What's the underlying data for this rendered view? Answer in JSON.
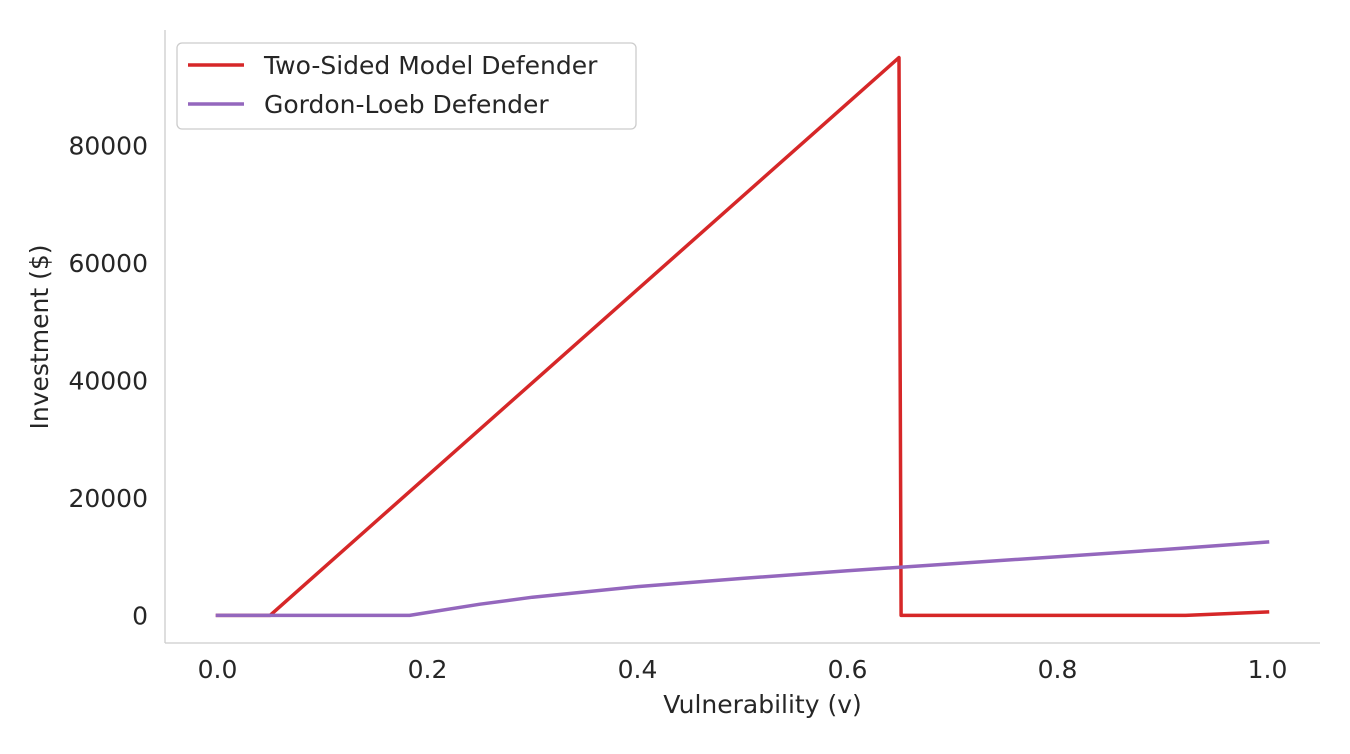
{
  "chart_data": {
    "type": "line",
    "title": "",
    "xlabel": "Vulnerability (v)",
    "ylabel": "Investment ($)",
    "xlim": [
      -0.05,
      1.05
    ],
    "ylim": [
      -4700,
      99700
    ],
    "xticks": [
      0.0,
      0.2,
      0.4,
      0.6,
      0.8,
      1.0
    ],
    "xtick_labels": [
      "0.0",
      "0.2",
      "0.4",
      "0.6",
      "0.8",
      "1.0"
    ],
    "yticks": [
      0,
      20000,
      40000,
      60000,
      80000
    ],
    "ytick_labels": [
      "0",
      "20000",
      "40000",
      "60000",
      "80000"
    ],
    "grid": false,
    "legend_position": "upper-left",
    "series": [
      {
        "name": "Two-Sided Model Defender",
        "color": "#d62728",
        "x": [
          0.0,
          0.05,
          0.649,
          0.651,
          0.922,
          1.0
        ],
        "y": [
          0,
          0,
          95000,
          0,
          0,
          600
        ]
      },
      {
        "name": "Gordon-Loeb Defender",
        "color": "#9467bd",
        "x": [
          0.0,
          0.183,
          0.25,
          0.3,
          0.4,
          0.5,
          0.6,
          0.7,
          0.8,
          0.9,
          1.0
        ],
        "y": [
          0,
          0,
          1900,
          3100,
          4900,
          6300,
          7600,
          8800,
          10000,
          11200,
          12500
        ]
      }
    ]
  }
}
